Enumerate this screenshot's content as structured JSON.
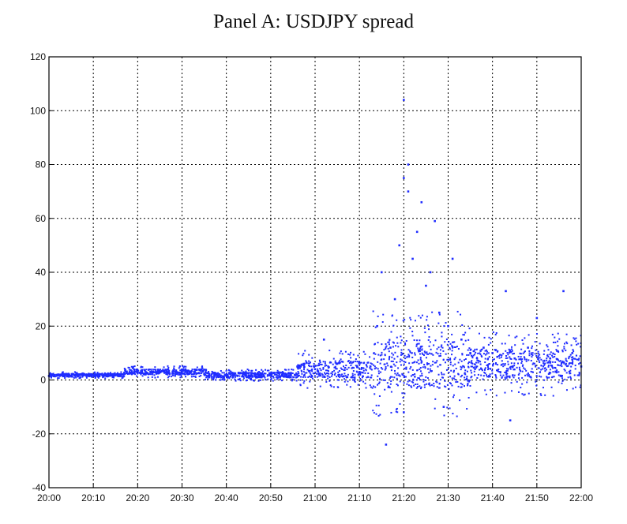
{
  "chart_data": {
    "type": "scatter",
    "title": "Panel A: USDJPY spread",
    "xlabel": "",
    "ylabel": "",
    "x_range": [
      "20:00",
      "22:00"
    ],
    "ylim": [
      -40,
      120
    ],
    "x_ticks": [
      "20:00",
      "20:10",
      "20:20",
      "20:30",
      "20:40",
      "20:50",
      "21:00",
      "21:10",
      "21:20",
      "21:30",
      "21:40",
      "21:50",
      "22:00"
    ],
    "y_ticks": [
      "-40",
      "-20",
      "0",
      "20",
      "40",
      "60",
      "80",
      "100",
      "120"
    ],
    "grid": true,
    "marker_color": "#1f2cff",
    "series": [
      {
        "points": [
          [
            "20:00",
            1.5
          ],
          [
            "20:05",
            1.5
          ],
          [
            "20:10",
            1.8
          ],
          [
            "20:15",
            2.0
          ],
          [
            "20:20",
            3.0
          ],
          [
            "20:25",
            3.0
          ],
          [
            "20:30",
            2.5
          ],
          [
            "20:35",
            2.2
          ],
          [
            "20:40",
            2.0
          ],
          [
            "20:45",
            2.5
          ],
          [
            "20:50",
            2.5
          ],
          [
            "20:56",
            5
          ],
          [
            "21:00",
            4
          ],
          [
            "21:02",
            15
          ],
          [
            "21:05",
            6
          ],
          [
            "21:10",
            3
          ],
          [
            "21:14",
            20
          ],
          [
            "21:15",
            40
          ],
          [
            "21:16",
            -24
          ],
          [
            "21:17",
            12
          ],
          [
            "21:18",
            30
          ],
          [
            "21:19",
            50
          ],
          [
            "21:20",
            104
          ],
          [
            "21:20",
            75
          ],
          [
            "21:20",
            -12
          ],
          [
            "21:21",
            80
          ],
          [
            "21:21",
            70
          ],
          [
            "21:22",
            45
          ],
          [
            "21:23",
            55
          ],
          [
            "21:24",
            66
          ],
          [
            "21:25",
            35
          ],
          [
            "21:26",
            40
          ],
          [
            "21:27",
            59
          ],
          [
            "21:28",
            25
          ],
          [
            "21:29",
            -10
          ],
          [
            "21:30",
            20
          ],
          [
            "21:31",
            45
          ],
          [
            "21:33",
            15
          ],
          [
            "21:35",
            10
          ],
          [
            "21:38",
            12
          ],
          [
            "21:40",
            10
          ],
          [
            "21:43",
            33
          ],
          [
            "21:44",
            -15
          ],
          [
            "21:45",
            8
          ],
          [
            "21:48",
            12
          ],
          [
            "21:50",
            23
          ],
          [
            "21:53",
            8
          ],
          [
            "21:56",
            33
          ],
          [
            "21:58",
            10
          ],
          [
            "22:00",
            5
          ]
        ]
      }
    ]
  }
}
